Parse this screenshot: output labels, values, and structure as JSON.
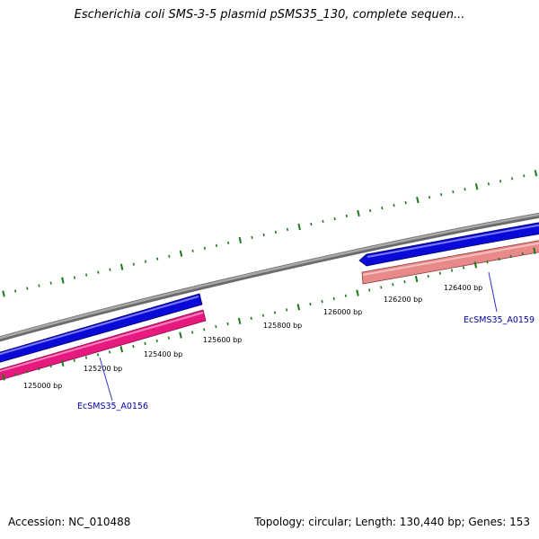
{
  "title": "Escherichia coli SMS-3-5 plasmid pSMS35_130, complete sequen...",
  "footer": {
    "accession": "Accession: NC_010488",
    "summary": "Topology: circular; Length: 130,440 bp; Genes: 153"
  },
  "scale": {
    "unit": "bp",
    "labels": [
      "125000 bp",
      "125200 bp",
      "125400 bp",
      "125600 bp",
      "125800 bp",
      "126000 bp",
      "126200 bp",
      "126400 bp"
    ]
  },
  "genes": [
    {
      "name": "EcSMS35_A0156",
      "strand": "reverse"
    },
    {
      "name": "EcSMS35_A0159",
      "strand": "forward"
    }
  ],
  "colors": {
    "backbone": "#8c8c8c",
    "forward_cds": "#0000e6",
    "reverse_cds_a": "#e6197f",
    "reverse_cds_b": "#e88a8a",
    "ticks": "#1a7a1a",
    "gene_label": "#0000aa",
    "leader_line": "#3333cc"
  }
}
